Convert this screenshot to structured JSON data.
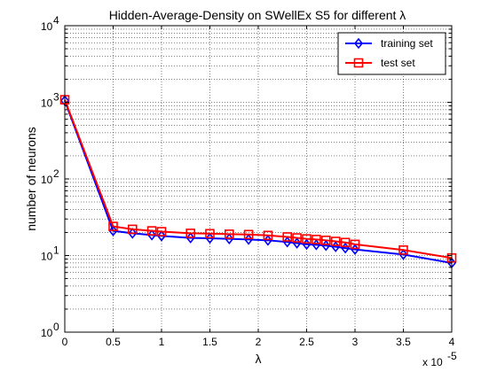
{
  "chart_data": {
    "type": "line",
    "title": "Hidden-Average-Density on SWellEx S5 for different λ",
    "xlabel": "λ",
    "ylabel": "number of neurons",
    "x_multiplier_label": "x 10",
    "x_multiplier_exponent": "-5",
    "xlim": [
      0,
      4
    ],
    "ylim": [
      1,
      10000
    ],
    "yscale": "log",
    "grid": true,
    "legend_position": "top-right",
    "x_ticks": [
      "0",
      "0.5",
      "1",
      "1.5",
      "2",
      "2.5",
      "3",
      "3.5",
      "4"
    ],
    "x_tick_values": [
      0,
      0.5,
      1,
      1.5,
      2,
      2.5,
      3,
      3.5,
      4
    ],
    "y_ticks": [
      {
        "value": 1,
        "base": "10",
        "exp": "0"
      },
      {
        "value": 10,
        "base": "10",
        "exp": "1"
      },
      {
        "value": 100,
        "base": "10",
        "exp": "2"
      },
      {
        "value": 1000,
        "base": "10",
        "exp": "3"
      },
      {
        "value": 10000,
        "base": "10",
        "exp": "4"
      }
    ],
    "series": [
      {
        "name": "training set",
        "color": "#0000ff",
        "marker": "diamond",
        "x": [
          0,
          0.5,
          0.7,
          0.9,
          1.0,
          1.3,
          1.5,
          1.7,
          1.9,
          2.1,
          2.3,
          2.4,
          2.5,
          2.6,
          2.7,
          2.8,
          2.9,
          3.0,
          3.5,
          4.0
        ],
        "values": [
          1050,
          21,
          19.5,
          18.5,
          18,
          17,
          16.8,
          16.5,
          16.2,
          15.8,
          15,
          14.5,
          14,
          13.8,
          13.5,
          13,
          12.5,
          12,
          10.3,
          8
        ]
      },
      {
        "name": "test set",
        "color": "#ff0000",
        "marker": "square",
        "x": [
          0,
          0.5,
          0.7,
          0.9,
          1.0,
          1.3,
          1.5,
          1.7,
          1.9,
          2.1,
          2.3,
          2.4,
          2.5,
          2.6,
          2.7,
          2.8,
          2.9,
          3.0,
          3.5,
          4.0
        ],
        "values": [
          1080,
          24,
          22,
          21,
          20.5,
          19.5,
          19.3,
          19,
          18.8,
          18.3,
          17.5,
          17,
          16.5,
          16.2,
          15.8,
          15.3,
          14.8,
          14,
          11.8,
          9.3
        ]
      }
    ]
  }
}
